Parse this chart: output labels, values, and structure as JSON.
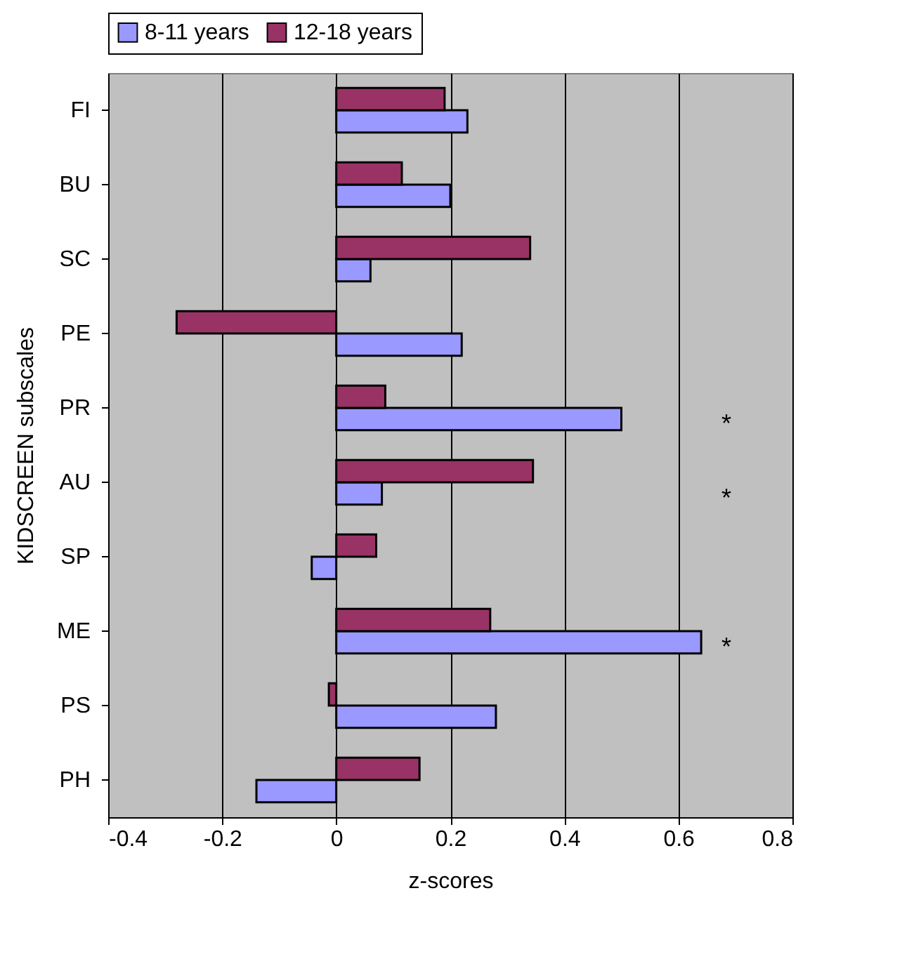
{
  "chart_data": {
    "type": "bar",
    "orientation": "horizontal",
    "xlabel": "z-scores",
    "ylabel": "KIDSCREEN subscales",
    "categories": [
      "FI",
      "BU",
      "SC",
      "PE",
      "PR",
      "AU",
      "SP",
      "ME",
      "PS",
      "PH"
    ],
    "series": [
      {
        "name": "8-11 years",
        "color": "#9999ff",
        "values": [
          0.23,
          0.2,
          0.06,
          0.22,
          0.5,
          0.08,
          -0.043,
          0.64,
          0.28,
          -0.14
        ]
      },
      {
        "name": "12-18 years",
        "color": "#993366",
        "values": [
          0.19,
          0.115,
          0.34,
          -0.28,
          0.086,
          0.345,
          0.07,
          0.27,
          -0.013,
          0.146
        ]
      }
    ],
    "xlim": [
      -0.4,
      0.8
    ],
    "xticks": [
      -0.4,
      -0.2,
      0,
      0.2,
      0.4,
      0.6,
      0.8
    ],
    "grid": "x",
    "legend": "top",
    "annotations": [
      "*",
      "*",
      "*"
    ]
  }
}
